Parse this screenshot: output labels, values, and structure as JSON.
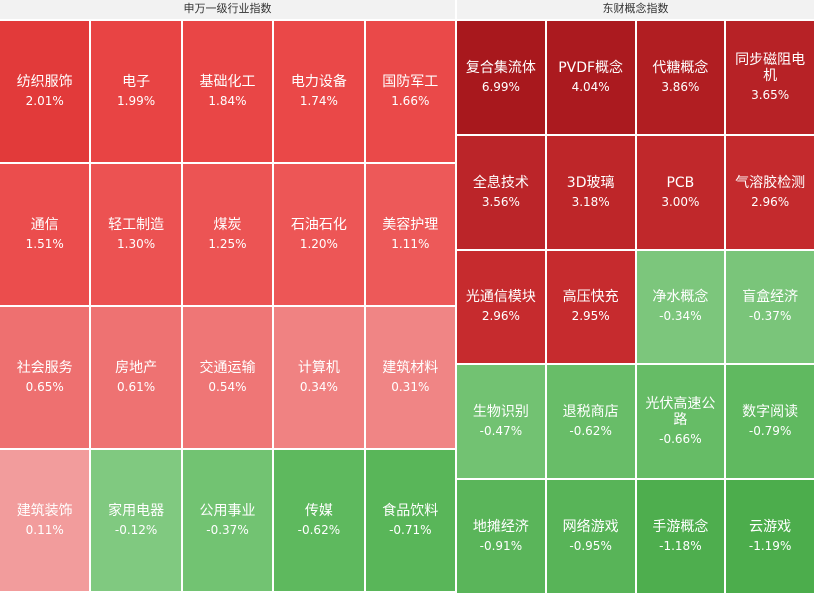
{
  "panels": [
    {
      "title": "申万一级行业指数",
      "columns": 5,
      "cells": [
        {
          "name": "纺织服饰",
          "value": "2.01%",
          "color": "#e23a3a"
        },
        {
          "name": "电子",
          "value": "1.99%",
          "color": "#e84444"
        },
        {
          "name": "基础化工",
          "value": "1.84%",
          "color": "#e94646"
        },
        {
          "name": "电力设备",
          "value": "1.74%",
          "color": "#ea4848"
        },
        {
          "name": "国防军工",
          "value": "1.66%",
          "color": "#ea4949"
        },
        {
          "name": "通信",
          "value": "1.51%",
          "color": "#eb4d4d"
        },
        {
          "name": "轻工制造",
          "value": "1.30%",
          "color": "#ec5252"
        },
        {
          "name": "煤炭",
          "value": "1.25%",
          "color": "#ec5454"
        },
        {
          "name": "石油石化",
          "value": "1.20%",
          "color": "#ed5656"
        },
        {
          "name": "美容护理",
          "value": "1.11%",
          "color": "#ed5959"
        },
        {
          "name": "社会服务",
          "value": "0.65%",
          "color": "#ee7070"
        },
        {
          "name": "房地产",
          "value": "0.61%",
          "color": "#ee7272"
        },
        {
          "name": "交通运输",
          "value": "0.54%",
          "color": "#ef7676"
        },
        {
          "name": "计算机",
          "value": "0.34%",
          "color": "#f08282"
        },
        {
          "name": "建筑材料",
          "value": "0.31%",
          "color": "#f08585"
        },
        {
          "name": "建筑装饰",
          "value": "0.11%",
          "color": "#f29c9c"
        },
        {
          "name": "家用电器",
          "value": "-0.12%",
          "color": "#80c980"
        },
        {
          "name": "公用事业",
          "value": "-0.37%",
          "color": "#72c372"
        },
        {
          "name": "传媒",
          "value": "-0.62%",
          "color": "#5eb95e"
        },
        {
          "name": "食品饮料",
          "value": "-0.71%",
          "color": "#59b659"
        }
      ]
    },
    {
      "title": "东财概念指数",
      "columns": 4,
      "cells": [
        {
          "name": "复合集流体",
          "value": "6.99%",
          "color": "#a8181d"
        },
        {
          "name": "PVDF概念",
          "value": "4.04%",
          "color": "#ab1a1f"
        },
        {
          "name": "代糖概念",
          "value": "3.86%",
          "color": "#b11e22"
        },
        {
          "name": "同步磁阻电机",
          "value": "3.65%",
          "color": "#b72226"
        },
        {
          "name": "全息技术",
          "value": "3.56%",
          "color": "#bb2529"
        },
        {
          "name": "3D玻璃",
          "value": "3.18%",
          "color": "#be2629"
        },
        {
          "name": "PCB",
          "value": "3.00%",
          "color": "#c0282b"
        },
        {
          "name": "气溶胶检测",
          "value": "2.96%",
          "color": "#c42a2d"
        },
        {
          "name": "光通信模块",
          "value": "2.96%",
          "color": "#c62b2e"
        },
        {
          "name": "高压快充",
          "value": "2.95%",
          "color": "#c62b2e"
        },
        {
          "name": "净水概念",
          "value": "-0.34%",
          "color": "#7cc67c"
        },
        {
          "name": "盲盒经济",
          "value": "-0.37%",
          "color": "#7ac57a"
        },
        {
          "name": "生物识别",
          "value": "-0.47%",
          "color": "#72c272"
        },
        {
          "name": "退税商店",
          "value": "-0.62%",
          "color": "#68bd68"
        },
        {
          "name": "光伏高速公路",
          "value": "-0.66%",
          "color": "#66bc66"
        },
        {
          "name": "数字阅读",
          "value": "-0.79%",
          "color": "#60b960"
        },
        {
          "name": "地摊经济",
          "value": "-0.91%",
          "color": "#5ab55a"
        },
        {
          "name": "网络游戏",
          "value": "-0.95%",
          "color": "#58b458"
        },
        {
          "name": "手游概念",
          "value": "-1.18%",
          "color": "#4eae4e"
        },
        {
          "name": "云游戏",
          "value": "-1.19%",
          "color": "#4cad4c"
        }
      ]
    }
  ]
}
